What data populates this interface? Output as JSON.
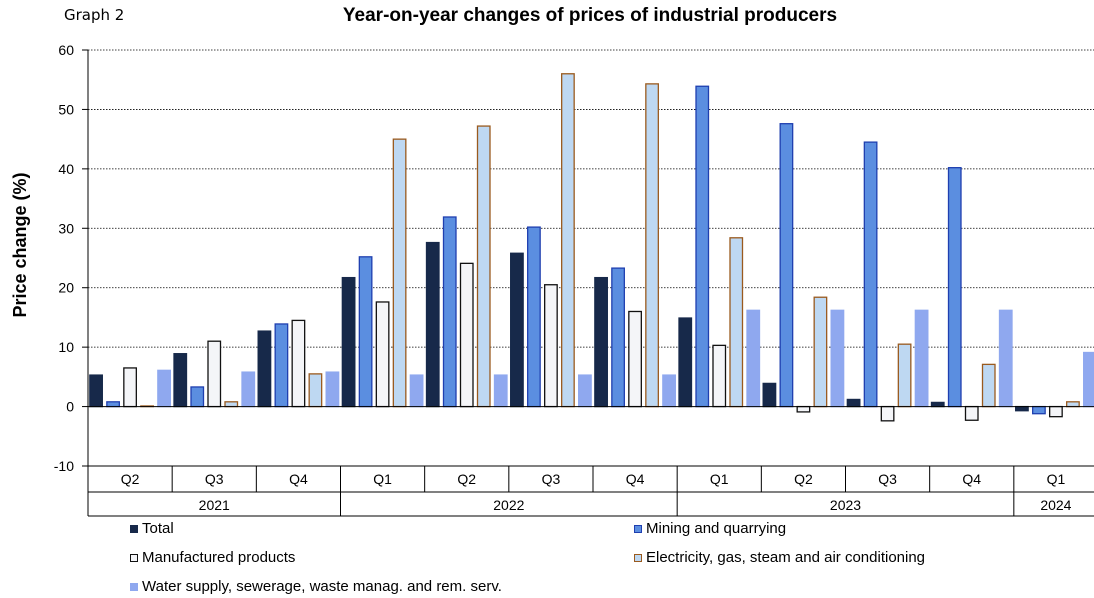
{
  "header": {
    "graph_label": "Graph 2"
  },
  "chart_data": {
    "type": "bar",
    "title": "Year-on-year changes of prices of industrial producers",
    "ylabel": "Price change (%)",
    "xlabel": "",
    "ylim": [
      -10,
      60
    ],
    "yticks": [
      -10,
      0,
      10,
      20,
      30,
      40,
      50,
      60
    ],
    "grid": true,
    "legend_position": "bottom",
    "categories": [
      "Q2",
      "Q3",
      "Q4",
      "Q1",
      "Q2",
      "Q3",
      "Q4",
      "Q1",
      "Q2",
      "Q3",
      "Q4",
      "Q1"
    ],
    "year_groups": [
      {
        "label": "2021",
        "count": 3
      },
      {
        "label": "2022",
        "count": 4
      },
      {
        "label": "2023",
        "count": 4
      },
      {
        "label": "2024",
        "count": 1
      }
    ],
    "series": [
      {
        "name": "Total",
        "fill": "#17294a",
        "stroke": "#17294a",
        "values": [
          5.3,
          8.9,
          12.7,
          21.7,
          27.6,
          25.8,
          21.7,
          14.9,
          3.9,
          1.2,
          0.7,
          -0.7
        ]
      },
      {
        "name": "Mining and quarrying",
        "fill": "#5b8ee0",
        "stroke": "#1f3fb0",
        "values": [
          0.8,
          3.3,
          13.9,
          25.2,
          31.9,
          30.2,
          23.3,
          53.9,
          47.6,
          44.5,
          40.2,
          -1.2
        ]
      },
      {
        "name": "Manufactured products",
        "fill": "#f4f5f8",
        "stroke": "#111111",
        "values": [
          6.5,
          11.0,
          14.5,
          17.6,
          24.1,
          20.5,
          16.0,
          10.3,
          -0.9,
          -2.4,
          -2.3,
          -1.7
        ]
      },
      {
        "name": "Electricity, gas, steam and air conditioning",
        "fill": "#bed8f2",
        "stroke": "#9a5a1e",
        "values": [
          0.1,
          0.8,
          5.5,
          45.0,
          47.2,
          56.0,
          54.3,
          28.4,
          18.4,
          10.5,
          7.1,
          0.8
        ]
      },
      {
        "name": "Water supply, sewerage,  waste manag. and rem. serv.",
        "fill": "#8fa8ef",
        "stroke": "#8fa8ef",
        "values": [
          6.1,
          5.8,
          5.8,
          5.3,
          5.3,
          5.3,
          5.3,
          16.2,
          16.2,
          16.2,
          16.2,
          9.1
        ]
      }
    ]
  }
}
